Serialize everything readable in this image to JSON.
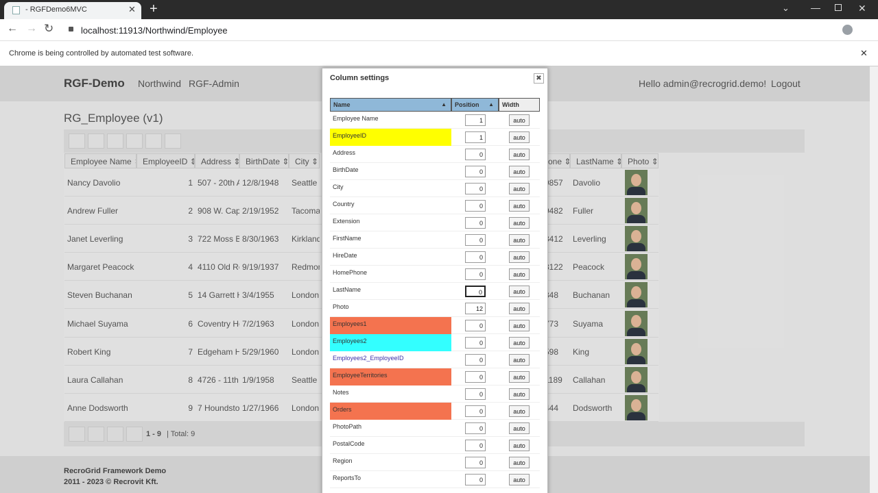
{
  "browser": {
    "tab_title": "- RGFDemo6MVC",
    "url": "localhost:11913/Northwind/Employee",
    "infobar": "Chrome is being controlled by automated test software."
  },
  "nav": {
    "brand": "RGF-Demo",
    "links": [
      "Northwind",
      "RGF-Admin"
    ],
    "greeting": "Hello admin@recrogrid.demo!",
    "logout": "Logout"
  },
  "grid": {
    "title": "RG_Employee (v1)",
    "columns": [
      "Employee Name",
      "EmployeeID",
      "Address",
      "BirthDate",
      "City",
      "one",
      "LastName",
      "Photo"
    ],
    "rows": [
      [
        "Nancy Davolio",
        1,
        "507 - 20th Av",
        "12/8/1948",
        "Seattle",
        "9857",
        "Davolio"
      ],
      [
        "Andrew Fuller",
        2,
        "908 W. Capit",
        "2/19/1952",
        "Tacoma",
        "9482",
        "Fuller"
      ],
      [
        "Janet Leverling",
        3,
        "722 Moss Ba",
        "8/30/1963",
        "Kirkland",
        "3412",
        "Leverling"
      ],
      [
        "Margaret Peacock",
        4,
        "4110 Old Re",
        "9/19/1937",
        "Redmon",
        "8122",
        "Peacock"
      ],
      [
        "Steven Buchanan",
        5,
        "14 Garrett Hi",
        "3/4/1955",
        "London",
        "848",
        "Buchanan"
      ],
      [
        "Michael Suyama",
        6,
        "Coventry Ho",
        "7/2/1963",
        "London",
        "773",
        "Suyama"
      ],
      [
        "Robert King",
        7,
        "Edgeham Hc",
        "5/29/1960",
        "London",
        "598",
        "King"
      ],
      [
        "Laura Callahan",
        8,
        "4726 - 11th A",
        "1/9/1958",
        "Seattle",
        "1189",
        "Callahan"
      ],
      [
        "Anne Dodsworth",
        9,
        "7 Houndstoo",
        "1/27/1966",
        "London",
        "444",
        "Dodsworth"
      ]
    ],
    "pager": {
      "range": "1 - 9",
      "total": "| Total: 9"
    }
  },
  "footer": {
    "line1": "RecroGrid Framework Demo",
    "line2": "2011 - 2023 © Recrovit Kft."
  },
  "dialog": {
    "title": "Column settings",
    "headers": [
      "Name",
      "Position",
      "Width"
    ],
    "rows": [
      {
        "name": "Employee Name",
        "position": 1,
        "width": "auto"
      },
      {
        "name": "EmployeeID",
        "position": 1,
        "width": "auto",
        "highlight": "#ffff00"
      },
      {
        "name": "Address",
        "position": 0,
        "width": "auto"
      },
      {
        "name": "BirthDate",
        "position": 0,
        "width": "auto"
      },
      {
        "name": "City",
        "position": 0,
        "width": "auto"
      },
      {
        "name": "Country",
        "position": 0,
        "width": "auto"
      },
      {
        "name": "Extension",
        "position": 0,
        "width": "auto"
      },
      {
        "name": "FirstName",
        "position": 0,
        "width": "auto"
      },
      {
        "name": "HireDate",
        "position": 0,
        "width": "auto"
      },
      {
        "name": "HomePhone",
        "position": 0,
        "width": "auto"
      },
      {
        "name": "LastName",
        "position": 0,
        "width": "auto"
      },
      {
        "name": "Photo",
        "position": 12,
        "width": "auto"
      },
      {
        "name": "Employees1",
        "position": 0,
        "width": "auto",
        "highlight": "#f4734f"
      },
      {
        "name": "Employees2",
        "position": 0,
        "width": "auto",
        "highlight": "#33ffff"
      },
      {
        "name": "Employees2_EmployeeID",
        "position": 0,
        "width": "auto",
        "text_color": "#3a2fa8"
      },
      {
        "name": "EmployeeTerritories",
        "position": 0,
        "width": "auto",
        "highlight": "#f4734f"
      },
      {
        "name": "Notes",
        "position": 0,
        "width": "auto"
      },
      {
        "name": "Orders",
        "position": 0,
        "width": "auto",
        "highlight": "#f4734f"
      },
      {
        "name": "PhotoPath",
        "position": 0,
        "width": "auto"
      },
      {
        "name": "PostalCode",
        "position": 0,
        "width": "auto"
      },
      {
        "name": "Region",
        "position": 0,
        "width": "auto"
      },
      {
        "name": "ReportsTo",
        "position": 0,
        "width": "auto"
      }
    ]
  }
}
